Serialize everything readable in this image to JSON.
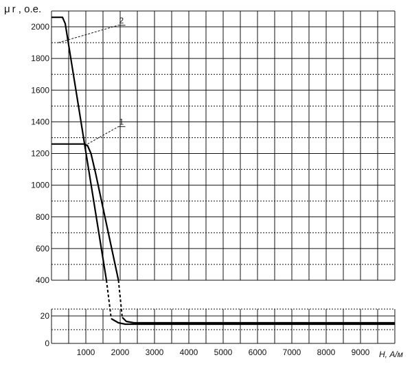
{
  "chart_data": {
    "type": "line",
    "ylabel": "μ r , о.е.",
    "xlabel": "H, А/м",
    "x_ticks": [
      "1000",
      "2000",
      "3000",
      "4000",
      "5000",
      "6000",
      "7000",
      "8000",
      "9000"
    ],
    "y_ticks_upper": [
      "2000",
      "1800",
      "1600",
      "1400",
      "1200",
      "1000",
      "800",
      "600",
      "400"
    ],
    "y_ticks_lower": [
      "20",
      "0"
    ],
    "xlim": [
      0,
      10000
    ],
    "ylim_upper": [
      400,
      2100
    ],
    "ylim_lower": [
      0,
      25
    ],
    "grid": true,
    "series": [
      {
        "name": "1",
        "upper": [
          [
            0,
            1260
          ],
          [
            950,
            1260
          ],
          [
            1050,
            1250
          ],
          [
            1150,
            1200
          ],
          [
            1280,
            1080
          ],
          [
            1950,
            400
          ]
        ],
        "dashed": [
          [
            1950,
            400
          ],
          [
            2060,
            210
          ]
        ],
        "lower": [
          [
            2060,
            19
          ],
          [
            2180,
            16
          ],
          [
            2400,
            15
          ],
          [
            10000,
            15
          ]
        ]
      },
      {
        "name": "2",
        "upper": [
          [
            0,
            2060
          ],
          [
            320,
            2060
          ],
          [
            400,
            2020
          ],
          [
            1600,
            400
          ]
        ],
        "dashed": [
          [
            1600,
            400
          ],
          [
            1740,
            210
          ]
        ],
        "lower": [
          [
            1740,
            18
          ],
          [
            1950,
            15
          ],
          [
            2150,
            14
          ],
          [
            10000,
            14
          ]
        ]
      }
    ],
    "annotations": [
      {
        "label": "1",
        "from": [
          1050,
          1260
        ],
        "to": [
          1950,
          1370
        ]
      },
      {
        "label": "2",
        "from": [
          200,
          1900
        ],
        "to": [
          1950,
          2010
        ]
      }
    ]
  }
}
